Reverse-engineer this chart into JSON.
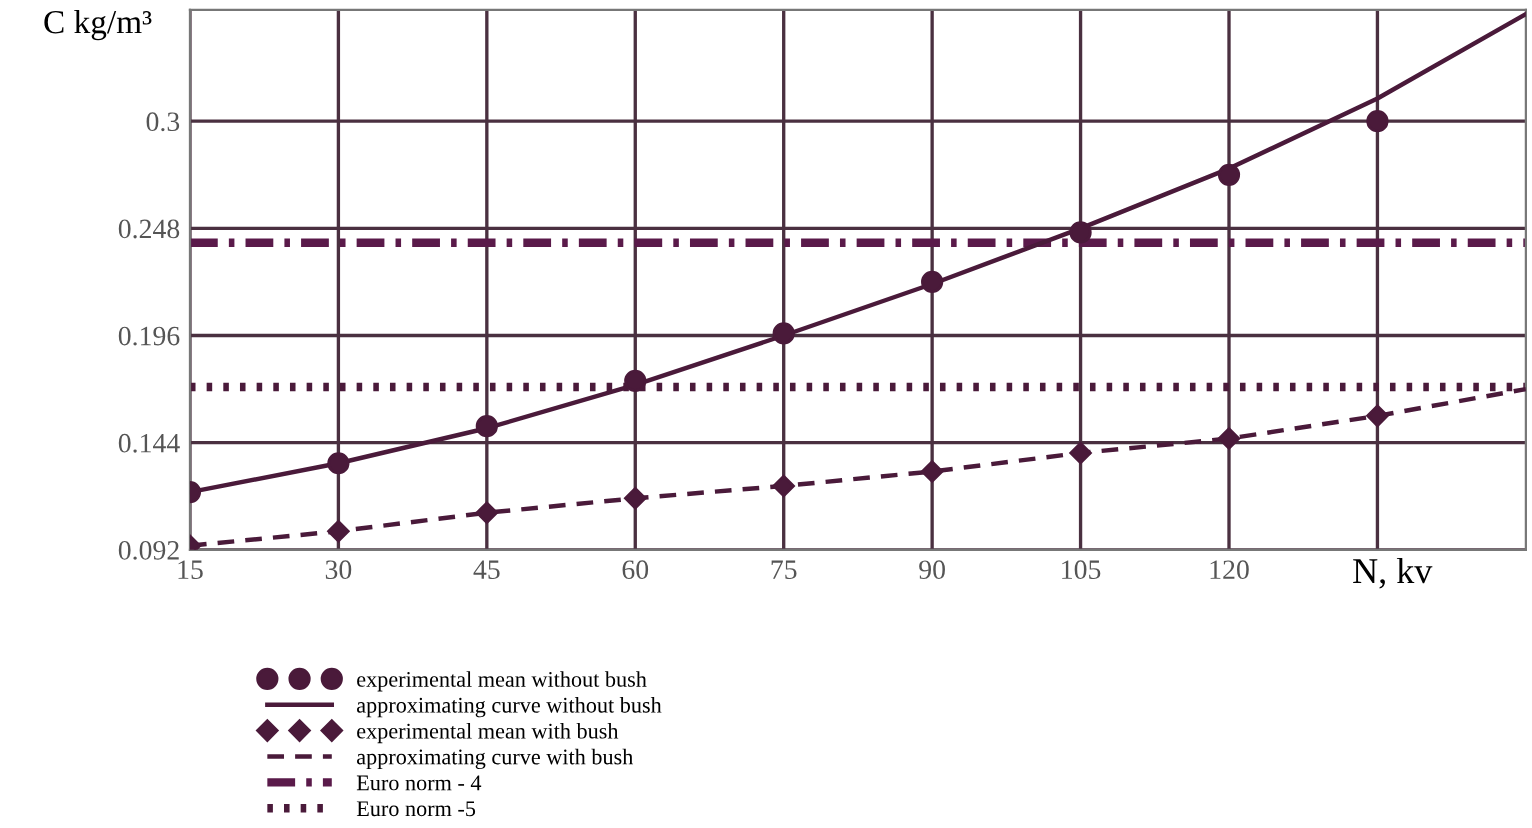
{
  "chart_data": {
    "type": "line",
    "xlabel": "N, kv",
    "ylabel": "C kg/m³",
    "x": [
      15,
      30,
      45,
      60,
      75,
      90,
      105,
      120,
      135
    ],
    "series": [
      {
        "name": "experimental mean without bush",
        "type": "scatter",
        "marker": "circle",
        "color": "#4a1a3a",
        "values": [
          0.12,
          0.134,
          0.152,
          0.174,
          0.197,
          0.222,
          0.246,
          0.274,
          0.3
        ]
      },
      {
        "name": "approximating curve without bush",
        "line_style": "solid",
        "color": "#4a1a3a",
        "x": [
          15,
          30,
          45,
          60,
          75,
          90,
          105,
          120,
          135,
          150
        ],
        "values": [
          0.12,
          0.134,
          0.151,
          0.172,
          0.196,
          0.221,
          0.248,
          0.277,
          0.311,
          0.352
        ]
      },
      {
        "name": "experimental mean with bush",
        "type": "scatter",
        "marker": "diamond",
        "color": "#4a1a3a",
        "values": [
          0.094,
          0.101,
          0.11,
          0.117,
          0.123,
          0.13,
          0.139,
          0.146,
          0.157
        ]
      },
      {
        "name": "approximating curve with bush",
        "line_style": "dashed",
        "color": "#4a1a3a",
        "x": [
          15,
          30,
          45,
          60,
          75,
          90,
          105,
          120,
          135,
          150
        ],
        "values": [
          0.094,
          0.101,
          0.11,
          0.117,
          0.123,
          0.13,
          0.139,
          0.146,
          0.157,
          0.17
        ]
      }
    ],
    "ref_lines": [
      {
        "axis": "y",
        "value": 0.241,
        "label": "Euro norm - 4",
        "line_style": "dashdot",
        "color": "#5a1a4a"
      },
      {
        "axis": "y",
        "value": 0.171,
        "label": "Euro norm -5",
        "line_style": "dotted",
        "color": "#4a1a3a"
      }
    ],
    "xlim": [
      15,
      150
    ],
    "ylim": [
      0.092,
      0.354
    ],
    "xticks": [
      15,
      30,
      45,
      60,
      75,
      90,
      105,
      120,
      {
        "value": 135,
        "label": null
      }
    ],
    "yticks": [
      0.092,
      0.144,
      0.196,
      0.248,
      0.3
    ],
    "grid": true,
    "legend": "bottom"
  }
}
